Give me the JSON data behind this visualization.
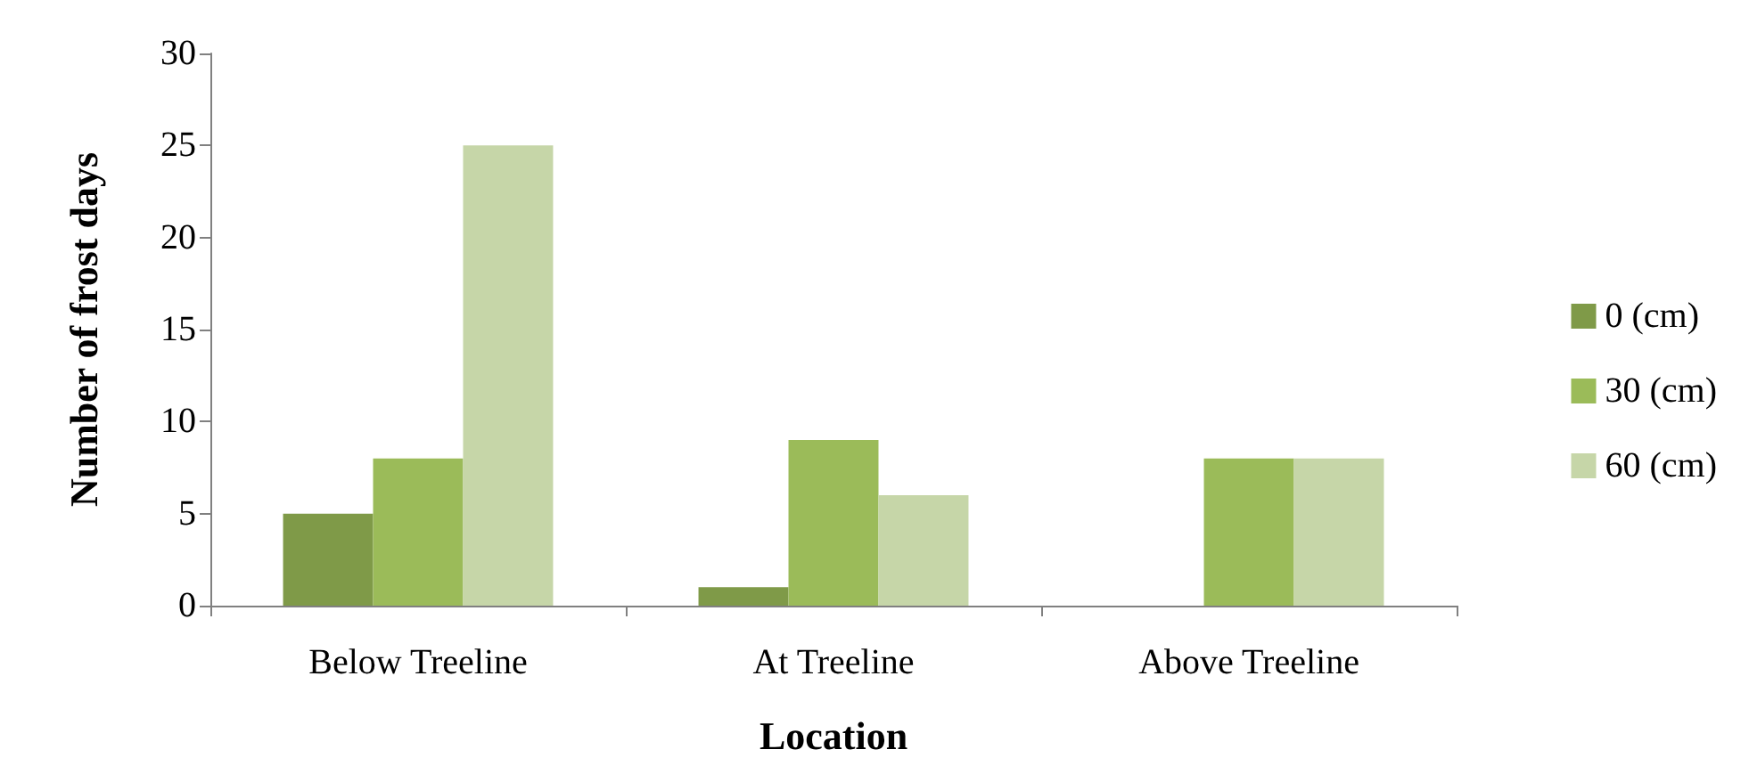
{
  "chart_data": {
    "type": "bar",
    "xlabel": "Location",
    "ylabel": "Number of frost days",
    "categories": [
      "Below Treeline",
      "At Treeline",
      "Above Treeline"
    ],
    "series": [
      {
        "name": "0 (cm)",
        "color": "#7f9a48",
        "values": [
          5,
          1,
          0
        ]
      },
      {
        "name": "30 (cm)",
        "color": "#9bbb59",
        "values": [
          8,
          9,
          8
        ]
      },
      {
        "name": "60 (cm)",
        "color": "#c6d6a8",
        "values": [
          25,
          6,
          8
        ]
      }
    ],
    "ylim": [
      0,
      30
    ],
    "yticks": [
      0,
      5,
      10,
      15,
      20,
      25,
      30
    ],
    "grid": false,
    "legend": "right"
  }
}
